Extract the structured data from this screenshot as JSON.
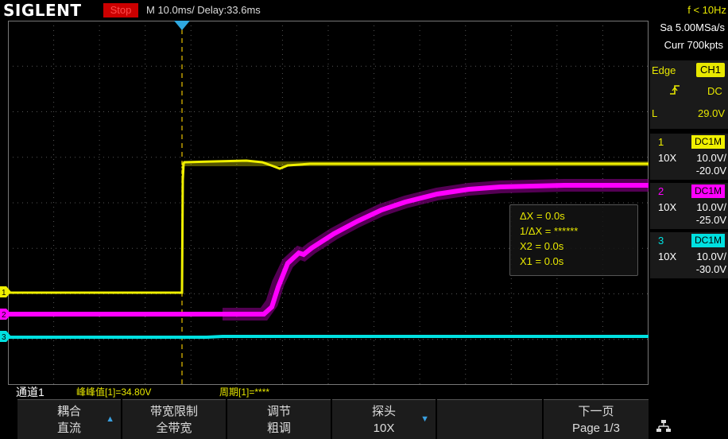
{
  "header": {
    "brand": "SIGLENT",
    "run_state": "Stop",
    "timebase": "M 10.0ms/ Delay:33.6ms",
    "frequency": "f < 10Hz"
  },
  "acquisition": {
    "sample_rate": "Sa 5.00MSa/s",
    "memory_depth": "Curr 700kpts"
  },
  "trigger": {
    "type": "Edge",
    "source": "CH1",
    "slope_icon": "rising-edge-icon",
    "coupling": "DC",
    "level_label": "L",
    "level": "29.0V"
  },
  "channels": [
    {
      "num": "1",
      "coupling": "DC1M",
      "probe": "10X",
      "scale": "10.0V/",
      "offset": "-20.0V",
      "color": "#f0f000"
    },
    {
      "num": "2",
      "coupling": "DC1M",
      "probe": "10X",
      "scale": "10.0V/",
      "offset": "-25.0V",
      "color": "#ff00ff"
    },
    {
      "num": "3",
      "coupling": "DC1M",
      "probe": "10X",
      "scale": "10.0V/",
      "offset": "-30.0V",
      "color": "#00e0e0"
    }
  ],
  "cursors": {
    "delta_x": "ΔX = 0.0s",
    "inv_delta_x": "1/ΔX = ******",
    "x2": "X2 = 0.0s",
    "x1": "X1 = 0.0s"
  },
  "measurements": {
    "channel_label": "通道1",
    "pkpk": "峰峰值[1]=34.80V",
    "period": "周期[1]=****"
  },
  "softkeys": [
    {
      "title": "耦合",
      "value": "直流",
      "arrow": "up"
    },
    {
      "title": "带宽限制",
      "value": "全带宽",
      "arrow": ""
    },
    {
      "title": "调节",
      "value": "粗调",
      "arrow": ""
    },
    {
      "title": "探头",
      "value": "10X",
      "arrow": "down"
    },
    {
      "title": "",
      "value": "",
      "arrow": ""
    },
    {
      "title": "下一页",
      "value": "Page 1/3",
      "arrow": ""
    }
  ],
  "network_icon": "network-icon",
  "colors": {
    "ch1": "#f0f000",
    "ch2": "#ff00ff",
    "ch3": "#00e0e0",
    "trigger": "#2fa8e0",
    "stop": "#cc0000"
  }
}
